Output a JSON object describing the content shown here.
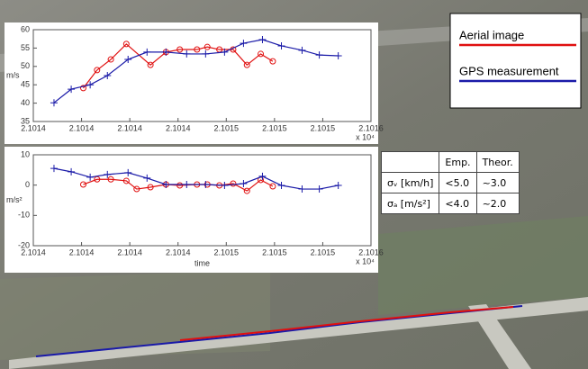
{
  "chart_data": [
    {
      "type": "line",
      "ylabel": "m/s",
      "xnote": "x 10⁴",
      "grid": false,
      "xlim": [
        2.10136,
        2.101556
      ],
      "ylim": [
        35,
        60
      ],
      "xticks": [
        {
          "value": 2.10136,
          "label": "2.1014"
        },
        {
          "value": 2.101388,
          "label": "2.1014"
        },
        {
          "value": 2.101416,
          "label": "2.1014"
        },
        {
          "value": 2.101444,
          "label": "2.1014"
        },
        {
          "value": 2.101472,
          "label": "2.1015"
        },
        {
          "value": 2.1015,
          "label": "2.1015"
        },
        {
          "value": 2.101528,
          "label": "2.1015"
        },
        {
          "value": 2.101556,
          "label": "2.1016"
        }
      ],
      "yticks": [
        35,
        40,
        45,
        50,
        55,
        60
      ],
      "series": [
        {
          "name": "Aerial image",
          "color": "#e01010",
          "marker": "o",
          "x": [
            2.101389,
            2.101397,
            2.101405,
            2.101414,
            2.101428,
            2.101437,
            2.101445,
            2.101455,
            2.101461,
            2.101468,
            2.101476,
            2.101484,
            2.101492,
            2.101499
          ],
          "values": [
            44.1,
            49.0,
            51.9,
            56.1,
            50.4,
            53.9,
            54.6,
            54.6,
            55.3,
            54.6,
            54.6,
            50.4,
            53.4,
            51.4
          ]
        },
        {
          "name": "GPS measurement",
          "color": "#1a1aa8",
          "marker": "+",
          "x": [
            2.101372,
            2.101382,
            2.101393,
            2.101403,
            2.101415,
            2.101426,
            2.101437,
            2.101449,
            2.10146,
            2.101471,
            2.101482,
            2.101493,
            2.101504,
            2.101516,
            2.101526,
            2.101537
          ],
          "values": [
            40.1,
            43.8,
            45.0,
            47.5,
            51.9,
            53.9,
            53.9,
            53.4,
            53.4,
            53.9,
            56.3,
            57.3,
            55.6,
            54.4,
            53.1,
            52.9
          ]
        }
      ]
    },
    {
      "type": "line",
      "ylabel": "m/s²",
      "xlabel": "time",
      "xnote": "x 10⁴",
      "grid": false,
      "xlim": [
        2.10136,
        2.101556
      ],
      "ylim": [
        -20,
        10
      ],
      "xticks": [
        {
          "value": 2.10136,
          "label": "2.1014"
        },
        {
          "value": 2.101388,
          "label": "2.1014"
        },
        {
          "value": 2.101416,
          "label": "2.1014"
        },
        {
          "value": 2.101444,
          "label": "2.1014"
        },
        {
          "value": 2.101472,
          "label": "2.1015"
        },
        {
          "value": 2.1015,
          "label": "2.1015"
        },
        {
          "value": 2.101528,
          "label": "2.1015"
        },
        {
          "value": 2.101556,
          "label": "2.1016"
        }
      ],
      "yticks": [
        -20,
        -10,
        0,
        10
      ],
      "series": [
        {
          "color": "#e01010",
          "marker": "o",
          "x": [
            2.101389,
            2.101397,
            2.101405,
            2.101414,
            2.10142,
            2.101428,
            2.101437,
            2.101445,
            2.101455,
            2.101461,
            2.101468,
            2.101476,
            2.101484,
            2.101492,
            2.101499
          ],
          "values": [
            0.2,
            1.9,
            1.9,
            1.4,
            -1.3,
            -0.7,
            0.2,
            -0.1,
            0.2,
            0.2,
            -0.1,
            0.5,
            -1.9,
            1.7,
            -0.4
          ]
        },
        {
          "color": "#1a1aa8",
          "marker": "+",
          "x": [
            2.101372,
            2.101382,
            2.101393,
            2.101403,
            2.101415,
            2.101426,
            2.101437,
            2.101449,
            2.10146,
            2.101471,
            2.101482,
            2.101493,
            2.101504,
            2.101516,
            2.101526,
            2.101537
          ],
          "values": [
            5.5,
            4.4,
            2.6,
            3.5,
            4.1,
            2.3,
            0.2,
            0.2,
            0.2,
            -0.1,
            0.5,
            2.9,
            -0.1,
            -1.3,
            -1.3,
            -0.1
          ]
        }
      ]
    }
  ],
  "table": {
    "header": [
      "Emp.",
      "Theor."
    ],
    "rows": [
      [
        "σᵥ [km/h]",
        "<5.0",
        "~3.0"
      ],
      [
        "σₐ [m/s²]",
        "<4.0",
        "~2.0"
      ]
    ]
  }
}
